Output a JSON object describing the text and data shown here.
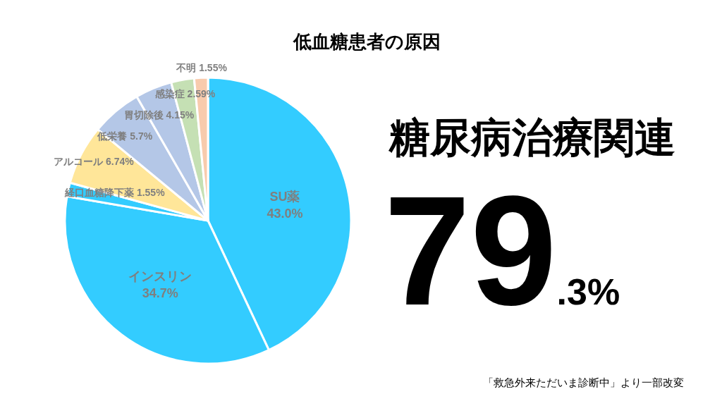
{
  "chart_data": {
    "type": "pie",
    "title": "低血糖患者の原因",
    "categories": [
      "SU薬",
      "インスリン",
      "経口血糖降下薬",
      "アルコール",
      "低栄養",
      "胃切除後",
      "感染症",
      "不明"
    ],
    "values": [
      43.0,
      34.7,
      1.55,
      6.74,
      5.7,
      4.15,
      2.59,
      1.55
    ],
    "colors": [
      "#33ccff",
      "#33ccff",
      "#33ccff",
      "#ffe699",
      "#b4c7e7",
      "#b4c7e7",
      "#c5e0b4",
      "#f8cbad"
    ],
    "value_labels": [
      "43.0%",
      "34.7%",
      "1.55%",
      "6.74%",
      "5.7%",
      "4.15%",
      "2.59%",
      "1.55%"
    ],
    "annotations": [
      "糖尿病治療関連",
      "79.3%",
      "「救急外来ただいま診断中」より一部改変"
    ]
  }
}
